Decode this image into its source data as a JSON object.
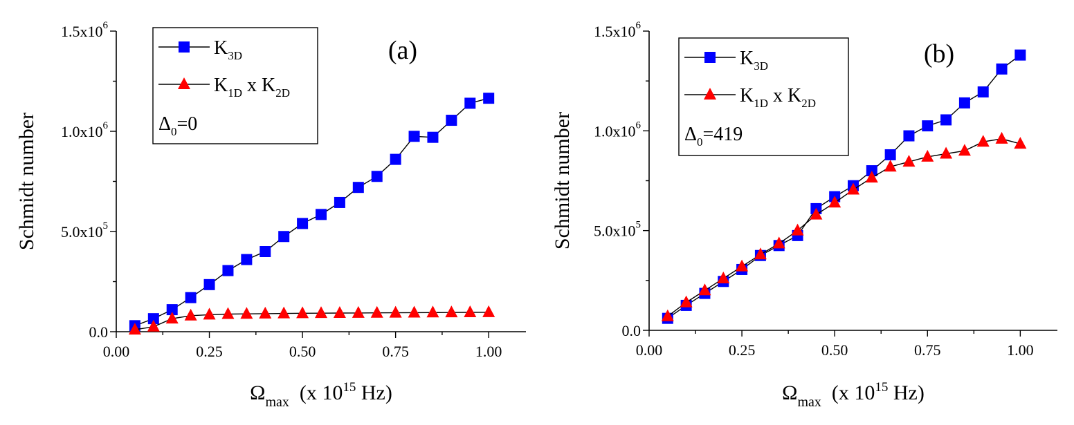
{
  "chart_data": [
    {
      "type": "line",
      "panel_label": "(a)",
      "xlabel": {
        "symbol": "Ω",
        "sub": "max",
        "pre": "(x 10",
        "sup": "15",
        "post": " Hz)"
      },
      "ylabel": "Schmidt number",
      "xlim": [
        0,
        1.1
      ],
      "ylim": [
        0,
        1500000
      ],
      "x_ticks": [
        0.0,
        0.25,
        0.5,
        0.75,
        1.0
      ],
      "x_tick_labels": [
        "0.00",
        "0.25",
        "0.50",
        "0.75",
        "1.00"
      ],
      "y_ticks": [
        0,
        500000,
        1000000,
        1500000
      ],
      "y_tick_labels": [
        {
          "base": "0.0",
          "exp": ""
        },
        {
          "base": "5.0x10",
          "exp": "5"
        },
        {
          "base": "1.0x10",
          "exp": "6"
        },
        {
          "base": "1.5x10",
          "exp": "6"
        }
      ],
      "legend": {
        "entries": [
          {
            "main": "K",
            "sub": "3D",
            "mid": "",
            "main2": "",
            "sub2": ""
          },
          {
            "main": "K",
            "sub": "1D",
            "mid": " x K",
            "main2": "",
            "sub2": "2D"
          }
        ],
        "note": {
          "main": "Δ",
          "sub": "0",
          "value": "=0"
        }
      },
      "x": [
        0.05,
        0.1,
        0.15,
        0.2,
        0.25,
        0.3,
        0.35,
        0.4,
        0.45,
        0.5,
        0.55,
        0.6,
        0.65,
        0.7,
        0.75,
        0.8,
        0.85,
        0.9,
        0.95,
        1.0
      ],
      "series": [
        {
          "name": "K3D",
          "marker": "square",
          "color": "#0000ff",
          "values": [
            30000,
            65000,
            110000,
            170000,
            235000,
            305000,
            360000,
            400000,
            475000,
            540000,
            585000,
            645000,
            720000,
            775000,
            860000,
            975000,
            970000,
            1055000,
            1140000,
            1165000
          ]
        },
        {
          "name": "K1D x K2D",
          "marker": "triangle",
          "color": "#ff0000",
          "values": [
            10000,
            25000,
            65000,
            80000,
            85000,
            88000,
            89000,
            90000,
            91000,
            92000,
            92500,
            93000,
            93500,
            94000,
            94500,
            95000,
            95500,
            96000,
            96500,
            97000
          ]
        }
      ]
    },
    {
      "type": "line",
      "panel_label": "(b)",
      "xlabel": {
        "symbol": "Ω",
        "sub": "max",
        "pre": "(x 10",
        "sup": "15",
        "post": " Hz)"
      },
      "ylabel": "Schmidt number",
      "xlim": [
        0,
        1.1
      ],
      "ylim": [
        0,
        1500000
      ],
      "x_ticks": [
        0.0,
        0.25,
        0.5,
        0.75,
        1.0
      ],
      "x_tick_labels": [
        "0.00",
        "0.25",
        "0.50",
        "0.75",
        "1.00"
      ],
      "y_ticks": [
        0,
        500000,
        1000000,
        1500000
      ],
      "y_tick_labels": [
        {
          "base": "0.0",
          "exp": ""
        },
        {
          "base": "5.0x10",
          "exp": "5"
        },
        {
          "base": "1.0x10",
          "exp": "6"
        },
        {
          "base": "1.5x10",
          "exp": "6"
        }
      ],
      "legend": {
        "entries": [
          {
            "main": "K",
            "sub": "3D",
            "mid": "",
            "main2": "",
            "sub2": ""
          },
          {
            "main": "K",
            "sub": "1D",
            "mid": " x K",
            "main2": "",
            "sub2": "2D"
          }
        ],
        "note": {
          "main": "Δ",
          "sub": "0",
          "value": "=419"
        }
      },
      "x": [
        0.05,
        0.1,
        0.15,
        0.2,
        0.25,
        0.3,
        0.35,
        0.4,
        0.45,
        0.5,
        0.55,
        0.6,
        0.65,
        0.7,
        0.75,
        0.8,
        0.85,
        0.9,
        0.95,
        1.0
      ],
      "series": [
        {
          "name": "K3D",
          "marker": "square",
          "color": "#0000ff",
          "values": [
            60000,
            125000,
            185000,
            245000,
            305000,
            375000,
            425000,
            475000,
            610000,
            670000,
            725000,
            800000,
            880000,
            975000,
            1025000,
            1055000,
            1140000,
            1195000,
            1310000,
            1380000
          ]
        },
        {
          "name": "K1D x K2D",
          "marker": "triangle",
          "color": "#ff0000",
          "values": [
            70000,
            140000,
            200000,
            260000,
            320000,
            380000,
            435000,
            500000,
            580000,
            640000,
            705000,
            765000,
            820000,
            845000,
            870000,
            885000,
            900000,
            945000,
            960000,
            935000
          ]
        }
      ]
    }
  ]
}
